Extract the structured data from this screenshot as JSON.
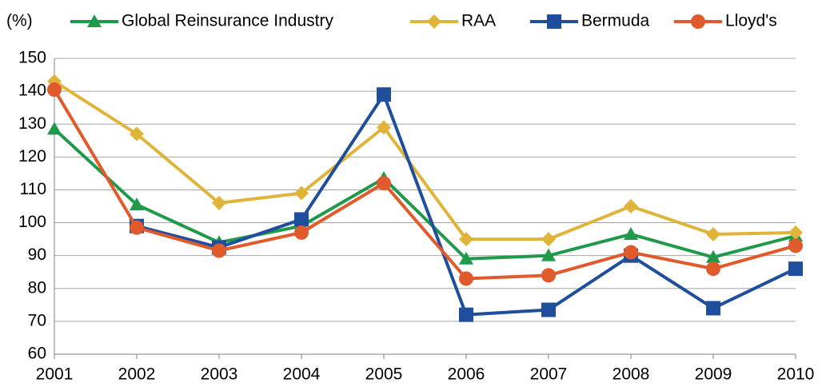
{
  "chart_data": {
    "type": "line",
    "y_label": "(%)",
    "categories": [
      "2001",
      "2002",
      "2003",
      "2004",
      "2005",
      "2006",
      "2007",
      "2008",
      "2009",
      "2010"
    ],
    "series": [
      {
        "name": "Global Reinsurance Industry",
        "color": "#1e9a4a",
        "marker": "triangle",
        "values": [
          128.5,
          105.5,
          94,
          99,
          113.5,
          89,
          90,
          96.5,
          89.5,
          96
        ]
      },
      {
        "name": "RAA",
        "color": "#e0b438",
        "marker": "diamond",
        "values": [
          143,
          127,
          106,
          109,
          129,
          95,
          95,
          105,
          96.5,
          97
        ]
      },
      {
        "name": "Bermuda",
        "color": "#1f4e9c",
        "marker": "square",
        "values": [
          null,
          99,
          92.5,
          101,
          139,
          72,
          73.5,
          90,
          74,
          86
        ]
      },
      {
        "name": "Lloyd's",
        "color": "#e05a2b",
        "marker": "circle",
        "values": [
          140.5,
          98.5,
          91.5,
          97,
          112,
          83,
          84,
          91,
          86,
          93
        ]
      }
    ],
    "ylim": [
      60,
      150
    ],
    "yticks": [
      60,
      70,
      80,
      90,
      100,
      110,
      120,
      130,
      140,
      150
    ],
    "grid": true,
    "legend": "top"
  }
}
